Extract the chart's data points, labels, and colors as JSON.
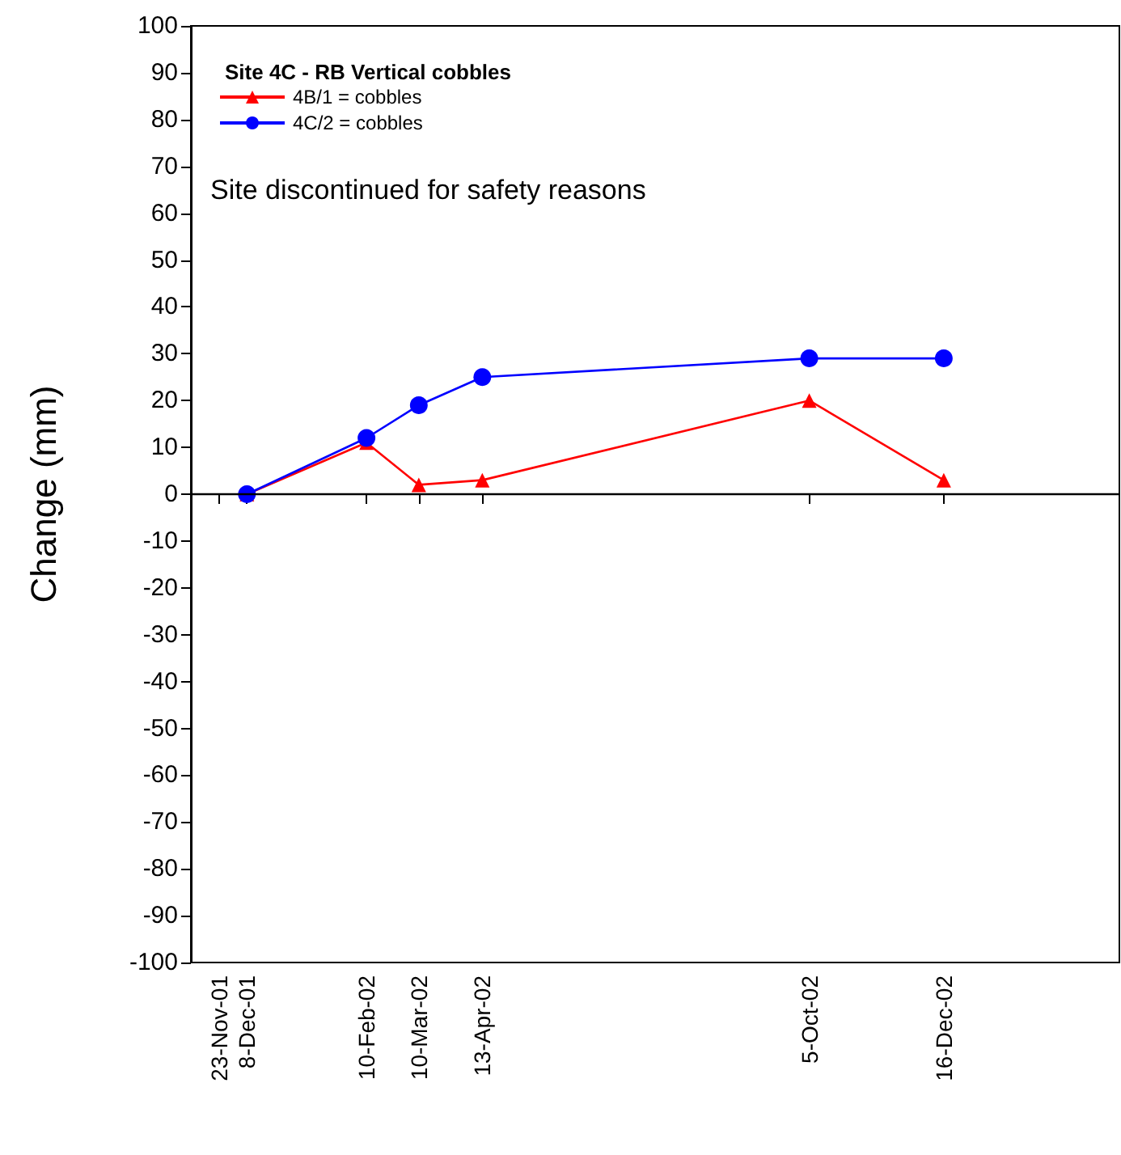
{
  "chart_data": {
    "type": "line",
    "ylabel": "Change (mm)",
    "legend_title": "Site 4C - RB Vertical cobbles",
    "annotations": [
      "Site discontinued for safety reasons"
    ],
    "x": [
      "2001-12-08",
      "2002-02-10",
      "2002-03-10",
      "2002-04-13",
      "2002-10-05",
      "2002-12-16"
    ],
    "series": [
      {
        "name": "4B/1 = cobbles",
        "color": "#ff0000",
        "marker": "triangle",
        "values": [
          0,
          11,
          2,
          3,
          20,
          3
        ]
      },
      {
        "name": "4C/2 = cobbles",
        "color": "#0000ff",
        "marker": "circle",
        "values": [
          0,
          12,
          19,
          25,
          29,
          29
        ]
      }
    ],
    "xlim": [
      "2001-11-08",
      "2003-03-20"
    ],
    "xticks": [
      {
        "value": "2001-11-23",
        "label": "23-Nov-01"
      },
      {
        "value": "2001-12-08",
        "label": "8-Dec-01"
      },
      {
        "value": "2002-02-10",
        "label": "10-Feb-02"
      },
      {
        "value": "2002-03-10",
        "label": "10-Mar-02"
      },
      {
        "value": "2002-04-13",
        "label": "13-Apr-02"
      },
      {
        "value": "2002-10-05",
        "label": "5-Oct-02"
      },
      {
        "value": "2002-12-16",
        "label": "16-Dec-02"
      }
    ],
    "ylim": [
      -100,
      100
    ],
    "yticks": [
      -100,
      -90,
      -80,
      -70,
      -60,
      -50,
      -40,
      -30,
      -20,
      -10,
      0,
      10,
      20,
      30,
      40,
      50,
      60,
      70,
      80,
      90,
      100
    ],
    "ref_lines": [
      {
        "axis": "y",
        "value": 0,
        "color": "#000000",
        "line_style": "solid"
      }
    ],
    "legend": "top left",
    "grid": false
  }
}
